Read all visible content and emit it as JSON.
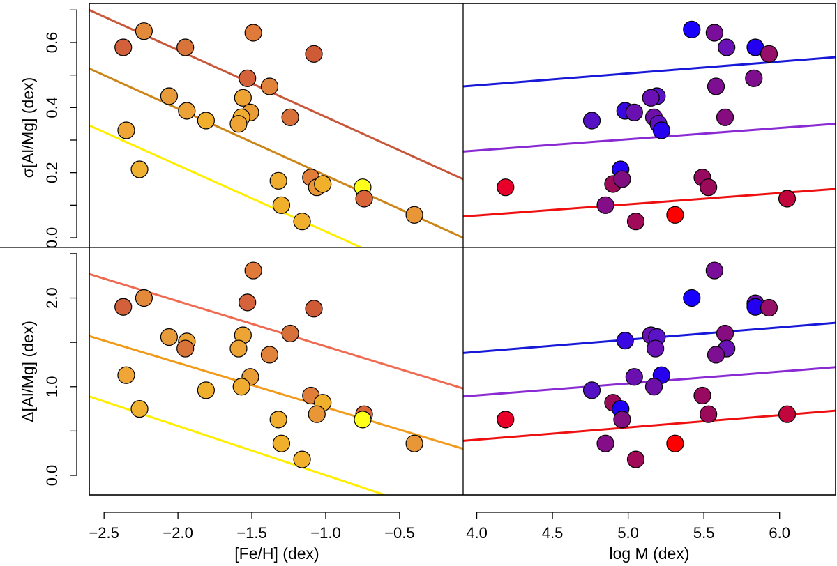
{
  "chart_data": {
    "type": "scatter",
    "panels": [
      {
        "id": "top-left",
        "x_variable": "[Fe/H] (dex)",
        "y_variable": "σ[Al/Mg] (dex)",
        "xlim": [
          -2.6,
          -0.07
        ],
        "ylim": [
          -0.03,
          0.72
        ],
        "points": [
          {
            "x": -2.37,
            "y": 0.585,
            "color": "#d2603a"
          },
          {
            "x": -2.23,
            "y": 0.635,
            "color": "#e38a3a"
          },
          {
            "x": -1.95,
            "y": 0.585,
            "color": "#d8743a"
          },
          {
            "x": -1.49,
            "y": 0.63,
            "color": "#e07a3a"
          },
          {
            "x": -1.08,
            "y": 0.565,
            "color": "#cf5a36"
          },
          {
            "x": -1.53,
            "y": 0.49,
            "color": "#d4623a"
          },
          {
            "x": -1.38,
            "y": 0.465,
            "color": "#e0823a"
          },
          {
            "x": -2.06,
            "y": 0.435,
            "color": "#e89b3a"
          },
          {
            "x": -1.56,
            "y": 0.43,
            "color": "#eea434"
          },
          {
            "x": -1.94,
            "y": 0.39,
            "color": "#eba238"
          },
          {
            "x": -1.51,
            "y": 0.385,
            "color": "#e89d36"
          },
          {
            "x": -1.57,
            "y": 0.37,
            "color": "#f0ac30"
          },
          {
            "x": -1.24,
            "y": 0.37,
            "color": "#d8703a"
          },
          {
            "x": -1.81,
            "y": 0.36,
            "color": "#f0b02e"
          },
          {
            "x": -1.59,
            "y": 0.35,
            "color": "#eea434"
          },
          {
            "x": -2.35,
            "y": 0.33,
            "color": "#f0a636"
          },
          {
            "x": -2.26,
            "y": 0.21,
            "color": "#f0b030"
          },
          {
            "x": -1.32,
            "y": 0.175,
            "color": "#f0ae30"
          },
          {
            "x": -1.1,
            "y": 0.185,
            "color": "#e07d38"
          },
          {
            "x": -1.06,
            "y": 0.155,
            "color": "#e89636"
          },
          {
            "x": -1.02,
            "y": 0.165,
            "color": "#f0b02c"
          },
          {
            "x": -0.75,
            "y": 0.155,
            "color": "#ffff1a"
          },
          {
            "x": -0.74,
            "y": 0.12,
            "color": "#d86438"
          },
          {
            "x": -1.3,
            "y": 0.1,
            "color": "#f0b02c"
          },
          {
            "x": -1.16,
            "y": 0.05,
            "color": "#f0b02e"
          },
          {
            "x": -0.4,
            "y": 0.07,
            "color": "#e89636"
          }
        ],
        "lines": [
          {
            "name": "upper",
            "color": "#c8573a",
            "x": [
              -2.6,
              -0.07
            ],
            "y": [
              0.7,
              0.18
            ]
          },
          {
            "name": "middle",
            "color": "#cc8518",
            "x": [
              -2.6,
              -0.07
            ],
            "y": [
              0.52,
              0.0
            ]
          },
          {
            "name": "lower",
            "color": "#ffee00",
            "x": [
              -2.6,
              -0.76
            ],
            "y": [
              0.345,
              -0.03
            ]
          }
        ]
      },
      {
        "id": "top-right",
        "x_variable": "log M (dex)",
        "y_variable": "σ[Al/Mg] (dex)",
        "xlim": [
          3.91,
          6.37
        ],
        "ylim": [
          -0.03,
          0.72
        ],
        "points": [
          {
            "x": 5.42,
            "y": 0.64,
            "color": "#1800ff"
          },
          {
            "x": 5.57,
            "y": 0.63,
            "color": "#7a0d9a"
          },
          {
            "x": 5.65,
            "y": 0.585,
            "color": "#6a12b6"
          },
          {
            "x": 5.84,
            "y": 0.585,
            "color": "#2400f0"
          },
          {
            "x": 5.93,
            "y": 0.565,
            "color": "#96106a"
          },
          {
            "x": 5.83,
            "y": 0.49,
            "color": "#7e0e8e"
          },
          {
            "x": 5.58,
            "y": 0.465,
            "color": "#7e0e92"
          },
          {
            "x": 5.19,
            "y": 0.435,
            "color": "#5a14c8"
          },
          {
            "x": 5.15,
            "y": 0.43,
            "color": "#6a10b4"
          },
          {
            "x": 4.98,
            "y": 0.39,
            "color": "#3a08e0"
          },
          {
            "x": 5.04,
            "y": 0.385,
            "color": "#6a10b0"
          },
          {
            "x": 5.17,
            "y": 0.37,
            "color": "#6e10a8"
          },
          {
            "x": 5.64,
            "y": 0.37,
            "color": "#860c80"
          },
          {
            "x": 4.76,
            "y": 0.36,
            "color": "#5412c4"
          },
          {
            "x": 5.2,
            "y": 0.35,
            "color": "#5e12bc"
          },
          {
            "x": 5.22,
            "y": 0.33,
            "color": "#2800f0"
          },
          {
            "x": 4.95,
            "y": 0.21,
            "color": "#2000f8"
          },
          {
            "x": 4.19,
            "y": 0.155,
            "color": "#e8002a"
          },
          {
            "x": 4.9,
            "y": 0.165,
            "color": "#9a0c5a"
          },
          {
            "x": 4.96,
            "y": 0.18,
            "color": "#800e80"
          },
          {
            "x": 5.49,
            "y": 0.185,
            "color": "#980a60"
          },
          {
            "x": 5.53,
            "y": 0.155,
            "color": "#9c0a5a"
          },
          {
            "x": 6.05,
            "y": 0.12,
            "color": "#c0063c"
          },
          {
            "x": 4.85,
            "y": 0.1,
            "color": "#840e88"
          },
          {
            "x": 5.05,
            "y": 0.05,
            "color": "#a00a58"
          },
          {
            "x": 5.31,
            "y": 0.07,
            "color": "#ff0000"
          }
        ],
        "lines": [
          {
            "name": "blue",
            "color": "#1818d8",
            "x": [
              3.91,
              6.37
            ],
            "y": [
              0.465,
              0.555
            ]
          },
          {
            "name": "purple",
            "color": "#8a2ad2",
            "x": [
              3.91,
              6.37
            ],
            "y": [
              0.265,
              0.35
            ]
          },
          {
            "name": "red",
            "color": "#ee1010",
            "x": [
              3.91,
              6.37
            ],
            "y": [
              0.065,
              0.15
            ]
          }
        ]
      },
      {
        "id": "bottom-left",
        "x_variable": "[Fe/H] (dex)",
        "y_variable": "Δ[Al/Mg] (dex)",
        "xlim": [
          -2.6,
          -0.07
        ],
        "ylim": [
          -0.22,
          2.57
        ],
        "points": [
          {
            "x": -2.37,
            "y": 1.9,
            "color": "#d2603a"
          },
          {
            "x": -2.23,
            "y": 2.0,
            "color": "#e38a3a"
          },
          {
            "x": -1.49,
            "y": 2.31,
            "color": "#e07a3a"
          },
          {
            "x": -1.53,
            "y": 1.95,
            "color": "#d4623a"
          },
          {
            "x": -1.08,
            "y": 1.88,
            "color": "#cf5a36"
          },
          {
            "x": -2.06,
            "y": 1.56,
            "color": "#e89b3a"
          },
          {
            "x": -1.94,
            "y": 1.51,
            "color": "#eba238"
          },
          {
            "x": -1.95,
            "y": 1.43,
            "color": "#d8743a"
          },
          {
            "x": -1.56,
            "y": 1.58,
            "color": "#eea434"
          },
          {
            "x": -1.59,
            "y": 1.43,
            "color": "#eea434"
          },
          {
            "x": -1.24,
            "y": 1.6,
            "color": "#d8703a"
          },
          {
            "x": -1.38,
            "y": 1.36,
            "color": "#e0823a"
          },
          {
            "x": -2.35,
            "y": 1.13,
            "color": "#f0a636"
          },
          {
            "x": -1.51,
            "y": 1.11,
            "color": "#e89d36"
          },
          {
            "x": -1.81,
            "y": 0.96,
            "color": "#f0b02e"
          },
          {
            "x": -1.57,
            "y": 1.0,
            "color": "#f0ac30"
          },
          {
            "x": -1.1,
            "y": 0.9,
            "color": "#e07d38"
          },
          {
            "x": -1.02,
            "y": 0.82,
            "color": "#f0b02c"
          },
          {
            "x": -2.26,
            "y": 0.75,
            "color": "#f0b030"
          },
          {
            "x": -1.32,
            "y": 0.63,
            "color": "#f0ae30"
          },
          {
            "x": -1.06,
            "y": 0.69,
            "color": "#e89636"
          },
          {
            "x": -0.74,
            "y": 0.69,
            "color": "#d86438"
          },
          {
            "x": -0.75,
            "y": 0.63,
            "color": "#ffff1a"
          },
          {
            "x": -1.3,
            "y": 0.36,
            "color": "#f0b02c"
          },
          {
            "x": -0.4,
            "y": 0.36,
            "color": "#e89636"
          },
          {
            "x": -1.16,
            "y": 0.18,
            "color": "#f0b02e"
          }
        ],
        "lines": [
          {
            "name": "upper",
            "color": "#ee6a50",
            "x": [
              -2.6,
              -0.07
            ],
            "y": [
              2.27,
              0.98
            ]
          },
          {
            "name": "middle",
            "color": "#f29a1a",
            "x": [
              -2.6,
              -0.07
            ],
            "y": [
              1.57,
              0.3
            ]
          },
          {
            "name": "lower",
            "color": "#ffee00",
            "x": [
              -2.6,
              -0.6
            ],
            "y": [
              0.89,
              -0.22
            ]
          }
        ]
      },
      {
        "id": "bottom-right",
        "x_variable": "log M (dex)",
        "y_variable": "Δ[Al/Mg] (dex)",
        "xlim": [
          3.91,
          6.37
        ],
        "ylim": [
          -0.22,
          2.57
        ],
        "points": [
          {
            "x": 5.57,
            "y": 2.31,
            "color": "#7a0d9a"
          },
          {
            "x": 5.42,
            "y": 2.0,
            "color": "#1800ff"
          },
          {
            "x": 5.84,
            "y": 1.94,
            "color": "#6e10a8"
          },
          {
            "x": 5.84,
            "y": 1.9,
            "color": "#2400f0"
          },
          {
            "x": 5.93,
            "y": 1.89,
            "color": "#96106a"
          },
          {
            "x": 5.64,
            "y": 1.6,
            "color": "#860c80"
          },
          {
            "x": 5.15,
            "y": 1.58,
            "color": "#6a10b4"
          },
          {
            "x": 5.19,
            "y": 1.56,
            "color": "#5a14c8"
          },
          {
            "x": 4.98,
            "y": 1.52,
            "color": "#3a08e0"
          },
          {
            "x": 5.18,
            "y": 1.43,
            "color": "#6a10b4"
          },
          {
            "x": 5.65,
            "y": 1.43,
            "color": "#6a12b6"
          },
          {
            "x": 5.58,
            "y": 1.36,
            "color": "#7e0e92"
          },
          {
            "x": 5.22,
            "y": 1.13,
            "color": "#2800f0"
          },
          {
            "x": 5.04,
            "y": 1.11,
            "color": "#6a10b0"
          },
          {
            "x": 5.17,
            "y": 1.0,
            "color": "#6e10a8"
          },
          {
            "x": 4.76,
            "y": 0.96,
            "color": "#5412c4"
          },
          {
            "x": 5.49,
            "y": 0.9,
            "color": "#980a60"
          },
          {
            "x": 4.9,
            "y": 0.82,
            "color": "#9a0c5a"
          },
          {
            "x": 4.95,
            "y": 0.75,
            "color": "#2000f8"
          },
          {
            "x": 5.53,
            "y": 0.69,
            "color": "#9c0a5a"
          },
          {
            "x": 6.05,
            "y": 0.69,
            "color": "#c0063c"
          },
          {
            "x": 4.19,
            "y": 0.63,
            "color": "#e8002a"
          },
          {
            "x": 4.96,
            "y": 0.63,
            "color": "#800e80"
          },
          {
            "x": 4.85,
            "y": 0.36,
            "color": "#840e88"
          },
          {
            "x": 5.31,
            "y": 0.36,
            "color": "#ff0000"
          },
          {
            "x": 5.05,
            "y": 0.18,
            "color": "#a00a58"
          }
        ],
        "lines": [
          {
            "name": "blue",
            "color": "#1818d8",
            "x": [
              3.91,
              6.37
            ],
            "y": [
              1.38,
              1.72
            ]
          },
          {
            "name": "purple",
            "color": "#8a2ad2",
            "x": [
              3.91,
              6.37
            ],
            "y": [
              0.89,
              1.22
            ]
          },
          {
            "name": "red",
            "color": "#ee1010",
            "x": [
              3.91,
              6.37
            ],
            "y": [
              0.39,
              0.73
            ]
          }
        ]
      }
    ],
    "axes": {
      "x_left": {
        "label": "[Fe/H] (dex)",
        "ticks": [
          -2.5,
          -2.0,
          -1.5,
          -1.0,
          -0.5
        ],
        "tick_labels": [
          "−2.5",
          "−2.0",
          "−1.5",
          "−1.0",
          "−0.5"
        ]
      },
      "x_right": {
        "label": "log M (dex)",
        "ticks": [
          4.0,
          4.5,
          5.0,
          5.5,
          6.0
        ],
        "tick_labels": [
          "4.0",
          "4.5",
          "5.0",
          "5.5",
          "6.0"
        ]
      },
      "y_top": {
        "label": "σ[Al/Mg] (dex)",
        "ticks": [
          0.0,
          0.2,
          0.4,
          0.6
        ],
        "tick_labels": [
          "0.0",
          "0.2",
          "0.4",
          "0.6"
        ],
        "minor_ticks": [
          0.1,
          0.3,
          0.5,
          0.7
        ]
      },
      "y_bottom": {
        "label": "Δ[Al/Mg] (dex)",
        "ticks": [
          0.0,
          1.0,
          2.0
        ],
        "tick_labels": [
          "0.0",
          "1.0",
          "2.0"
        ],
        "minor_ticks": [
          0.5,
          1.5,
          2.5
        ]
      }
    }
  }
}
